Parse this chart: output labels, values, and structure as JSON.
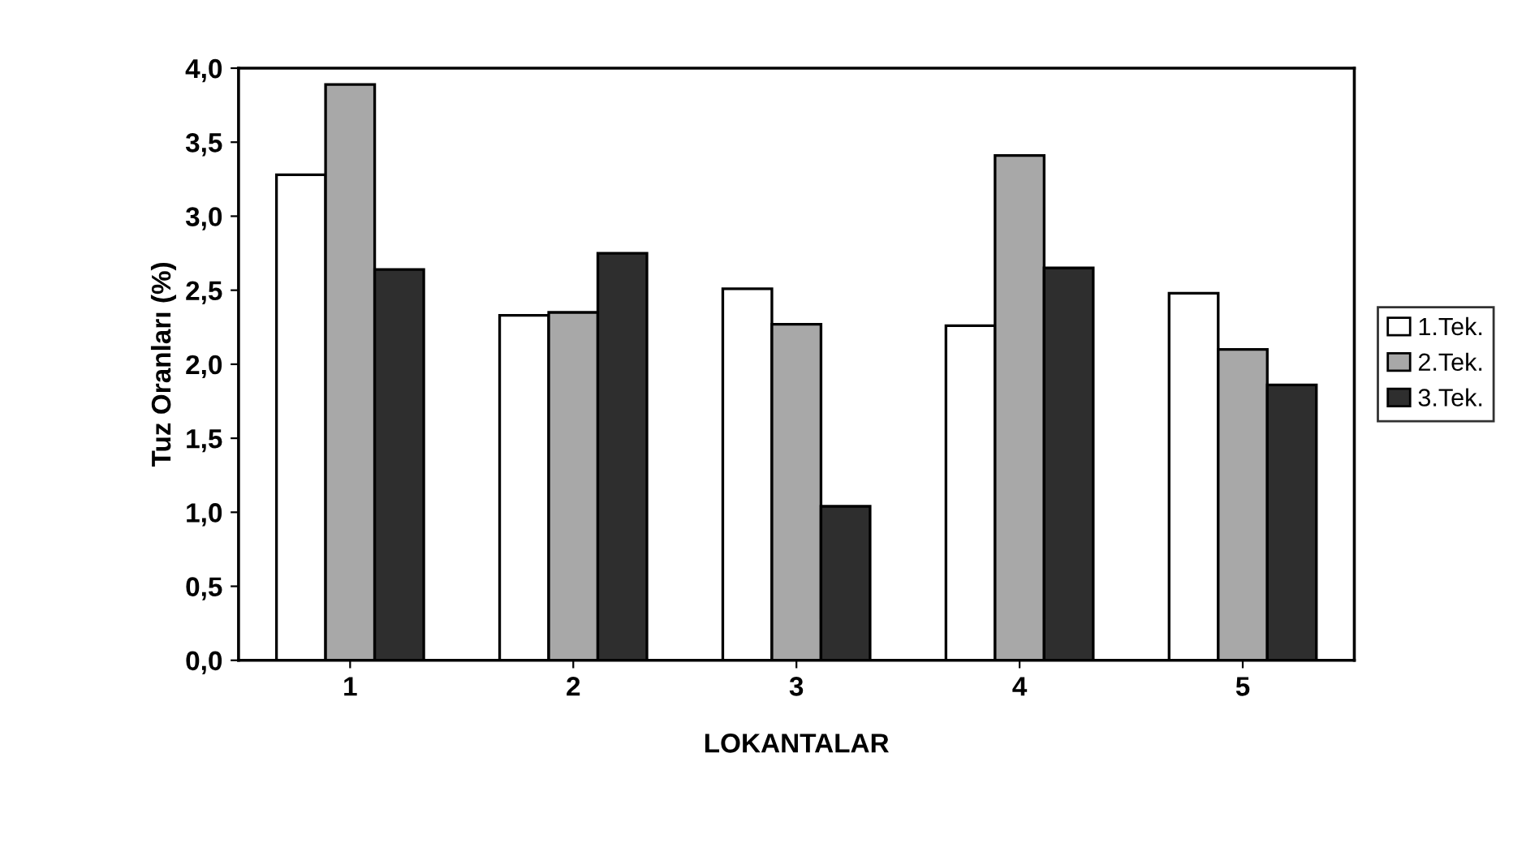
{
  "chart_data": {
    "type": "bar",
    "xlabel": "LOKANTALAR",
    "ylabel": "Tuz Oranları (%)",
    "categories": [
      "1",
      "2",
      "3",
      "4",
      "5"
    ],
    "series": [
      {
        "name": "1.Tek.",
        "color": "#ffffff",
        "values": [
          3.28,
          2.33,
          2.51,
          2.26,
          2.48
        ]
      },
      {
        "name": "2.Tek.",
        "color": "#a8a8a8",
        "values": [
          3.89,
          2.35,
          2.27,
          3.41,
          2.1
        ]
      },
      {
        "name": "3.Tek.",
        "color": "#2e2e2e",
        "values": [
          2.64,
          2.75,
          1.04,
          2.65,
          1.86
        ]
      }
    ],
    "ylim": [
      0,
      4
    ],
    "yticks": [
      {
        "value": 0,
        "label": "0,0"
      },
      {
        "value": 0.5,
        "label": "0,5"
      },
      {
        "value": 1,
        "label": "1,0"
      },
      {
        "value": 1.5,
        "label": "1,5"
      },
      {
        "value": 2,
        "label": "2,0"
      },
      {
        "value": 2.5,
        "label": "2,5"
      },
      {
        "value": 3,
        "label": "3,0"
      },
      {
        "value": 3.5,
        "label": "3,5"
      },
      {
        "value": 4,
        "label": "4,0"
      }
    ],
    "grid": false,
    "legend": "right"
  }
}
